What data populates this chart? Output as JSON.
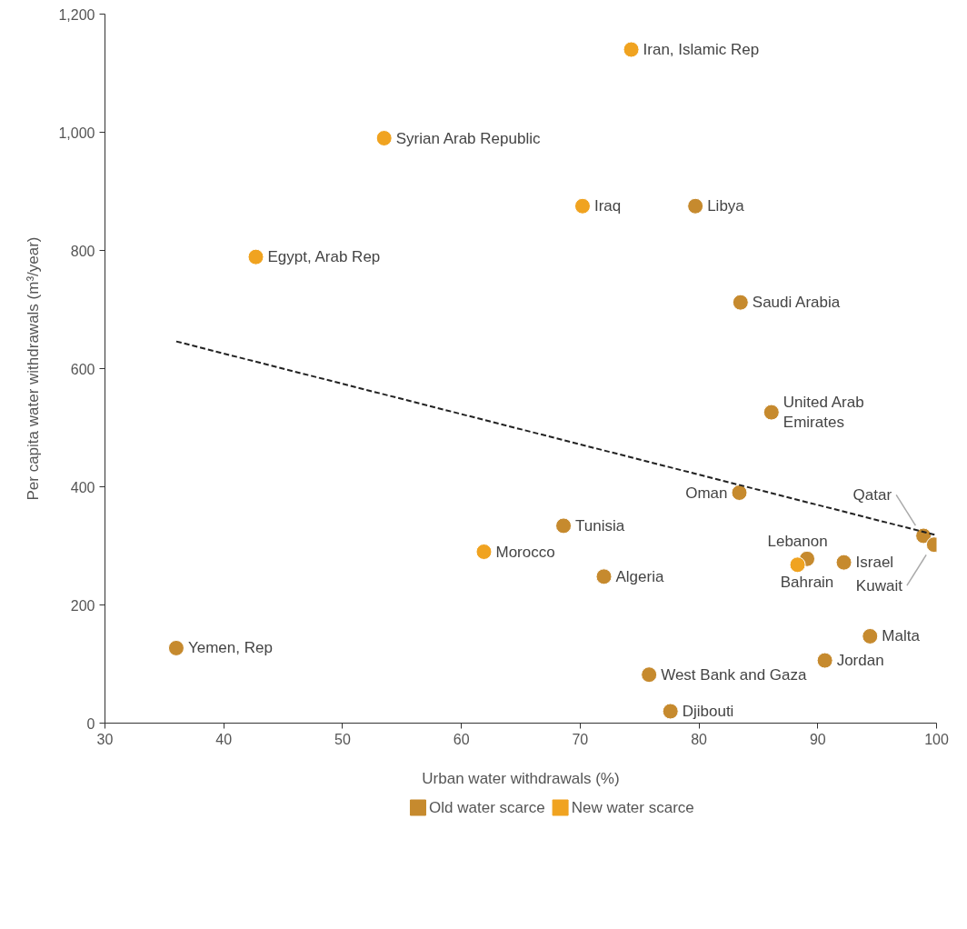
{
  "chart_data": {
    "type": "scatter",
    "xlabel": "Urban water withdrawals (%)",
    "ylabel": "Per capita water withdrawals (m³/year)",
    "xlim": [
      30,
      100
    ],
    "xticks": [
      30,
      40,
      50,
      60,
      70,
      80,
      90,
      100
    ],
    "ylim": [
      0,
      1200
    ],
    "yticks": [
      0,
      200,
      400,
      600,
      800,
      {
        "value": 1000,
        "label": "1,000"
      },
      {
        "value": 1200,
        "label": "1,200"
      }
    ],
    "grid": false,
    "legend": "bottom",
    "marker": "circle",
    "series": [
      {
        "name": "Old water scarce",
        "color": "#c68a2e",
        "x": [
          79.7,
          83.5,
          86.1,
          83.4,
          98.9,
          99.8,
          68.6,
          72.0,
          89.1,
          92.2,
          36.0,
          75.8,
          77.6,
          94.4,
          90.6
        ],
        "values": [
          875,
          712,
          526,
          390,
          317,
          302,
          334,
          248,
          278,
          272,
          127,
          82,
          20,
          147,
          106
        ]
      },
      {
        "name": "New water scarce",
        "color": "#f0a320",
        "x": [
          74.3,
          53.5,
          70.2,
          42.7,
          61.9,
          88.3
        ],
        "values": [
          1140,
          990,
          875,
          789,
          290,
          268
        ]
      },
      {
        "type": "line",
        "color": "#222222",
        "line_style": "dashed",
        "marker": "none",
        "x": [
          36.0,
          100
        ],
        "values": [
          646,
          318
        ]
      }
    ],
    "annotations": [
      {
        "text": "Iran, Islamic Rep",
        "x": 74.3,
        "y": 1140
      },
      {
        "text": "Syrian Arab Republic",
        "x": 53.5,
        "y": 990
      },
      {
        "text": "Iraq",
        "x": 70.2,
        "y": 875
      },
      {
        "text": "Libya",
        "x": 79.7,
        "y": 875
      },
      {
        "text": "Egypt, Arab Rep",
        "x": 42.7,
        "y": 789
      },
      {
        "text": "Saudi Arabia",
        "x": 83.5,
        "y": 712
      },
      {
        "text": "United Arab\nEmirates",
        "x": 86.1,
        "y": 526
      },
      {
        "text": "Oman",
        "x": 83.4,
        "y": 390
      },
      {
        "text": "Qatar",
        "x": 98.9,
        "y": 317
      },
      {
        "text": "Kuwait",
        "x": 99.8,
        "y": 302
      },
      {
        "text": "Tunisia",
        "x": 68.6,
        "y": 334
      },
      {
        "text": "Morocco",
        "x": 61.9,
        "y": 290
      },
      {
        "text": "Algeria",
        "x": 72.0,
        "y": 248
      },
      {
        "text": "Bahrain",
        "x": 89.1,
        "y": 278
      },
      {
        "text": "Lebanon",
        "x": 88.3,
        "y": 268
      },
      {
        "text": "Israel",
        "x": 92.2,
        "y": 272
      },
      {
        "text": "Yemen, Rep",
        "x": 36.0,
        "y": 127
      },
      {
        "text": "West Bank and Gaza",
        "x": 75.8,
        "y": 82
      },
      {
        "text": "Djibouti",
        "x": 77.6,
        "y": 20
      },
      {
        "text": "Malta",
        "x": 94.4,
        "y": 147
      },
      {
        "text": "Jordan",
        "x": 90.6,
        "y": 106
      }
    ]
  }
}
